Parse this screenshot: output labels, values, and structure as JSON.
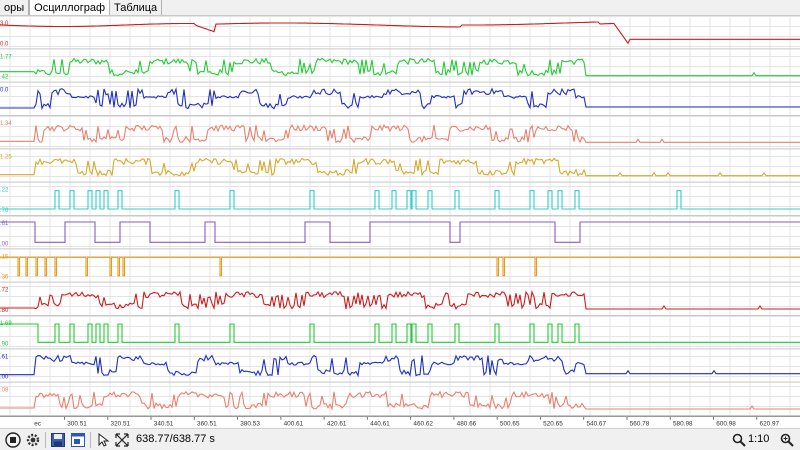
{
  "tabs": [
    {
      "label": "оры",
      "active": false
    },
    {
      "label": "Осциллограф",
      "active": true
    },
    {
      "label": "Таблица",
      "active": false
    }
  ],
  "xaxis": {
    "unit_label": "ec",
    "ticks": [
      "300.51",
      "320.51",
      "340.51",
      "360.51",
      "380.53",
      "400.61",
      "420.61",
      "440.61",
      "460.62",
      "480.66",
      "500.65",
      "520.65",
      "540.67",
      "560.78",
      "580.98",
      "600.98",
      "620.97"
    ]
  },
  "colors": {
    "red": "#c81e1e",
    "green": "#22cc33",
    "blue": "#1f2fbf",
    "salmon": "#e8806e",
    "gold": "#d9a82a",
    "cyan": "#33cccc",
    "purple": "#8a5ac8",
    "orange": "#e89a1a",
    "grid": "#e4e4e4",
    "divider": "#c8c8c8",
    "axis": "#999999"
  },
  "channels": [
    {
      "name": "ch1",
      "color": "red",
      "label_top": "3.0",
      "label_bottom": "0.0",
      "kind": "smooth"
    },
    {
      "name": "ch2",
      "color": "green",
      "label_top": "1.77",
      "label_bottom": ".42",
      "kind": "noisy"
    },
    {
      "name": "ch3",
      "color": "blue",
      "label_top": "0.0",
      "label_bottom": "",
      "kind": "noisy-blocks"
    },
    {
      "name": "ch4",
      "color": "salmon",
      "label_top": "1.34",
      "label_bottom": "",
      "kind": "noisy"
    },
    {
      "name": "ch5",
      "color": "gold",
      "label_top": "1.25",
      "label_bottom": "",
      "kind": "noisy"
    },
    {
      "name": "ch6",
      "color": "cyan",
      "label_top": ".22",
      "label_bottom": ".76",
      "kind": "pulses"
    },
    {
      "name": "ch7",
      "color": "purple",
      "label_top": ".61",
      "label_bottom": ".00",
      "kind": "digital"
    },
    {
      "name": "ch8",
      "color": "orange",
      "label_top": ".15",
      "label_bottom": ".36",
      "kind": "spikes-down"
    },
    {
      "name": "ch9",
      "color": "red",
      "label_top": ".72",
      "label_bottom": ".80",
      "kind": "noisy"
    },
    {
      "name": "ch10",
      "color": "green",
      "label_top": "1.69",
      "label_bottom": ".90",
      "kind": "pulses"
    },
    {
      "name": "ch11",
      "color": "blue",
      "label_top": ".61",
      "label_bottom": ".00",
      "kind": "noisy-blocks"
    },
    {
      "name": "ch12",
      "color": "salmon",
      "label_top": ".08",
      "label_bottom": "",
      "kind": "noisy"
    }
  ],
  "toolbar": {
    "time_readout": "638.77/638.77 s",
    "scale_readout": "1:10",
    "icons": [
      "stop-icon",
      "settings-gear-icon",
      "save-icon",
      "export-icon",
      "cursor-icon",
      "fit-icon"
    ]
  }
}
